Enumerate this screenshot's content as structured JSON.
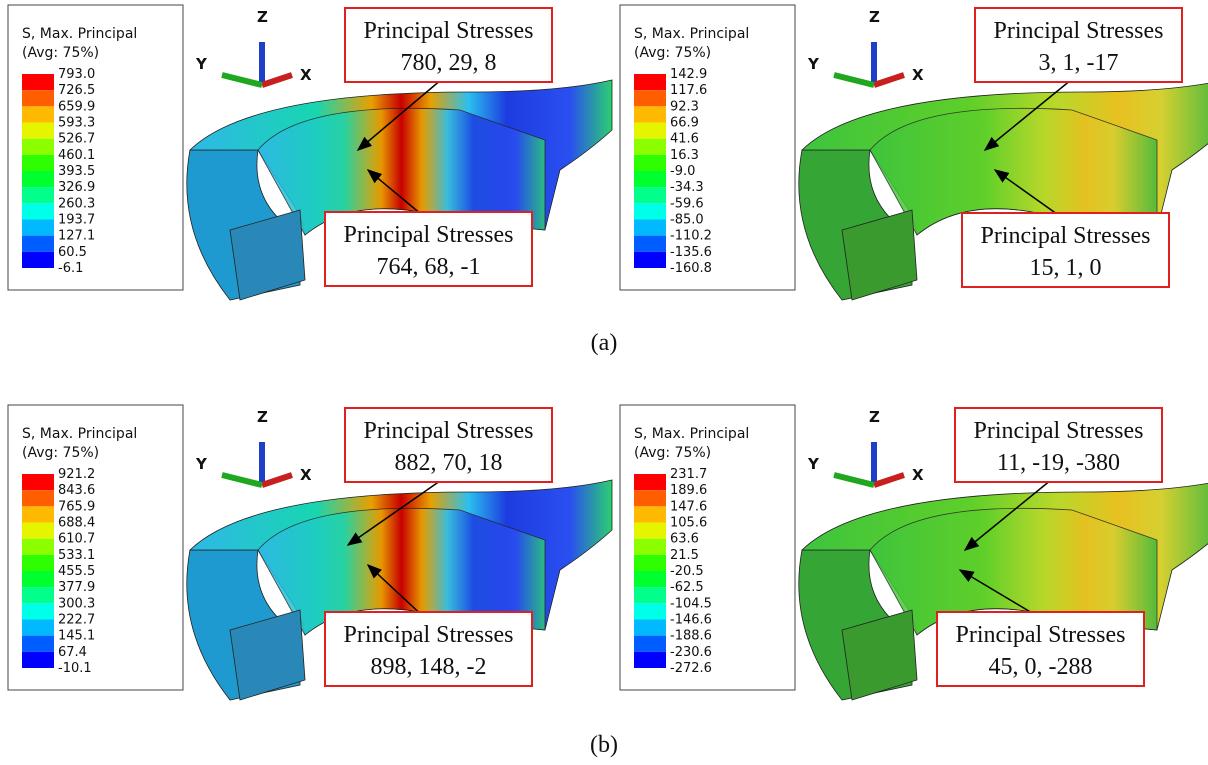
{
  "panels": [
    {
      "legend": {
        "title": "S, Max. Principal",
        "subtitle": "(Avg: 75%)",
        "values": [
          "793.0",
          "726.5",
          "659.9",
          "593.3",
          "526.7",
          "460.1",
          "393.5",
          "326.9",
          "260.3",
          "193.7",
          "127.1",
          "60.5",
          "-6.1"
        ]
      },
      "axes": {
        "z": "Z",
        "y": "Y",
        "x": "X"
      },
      "callouts": [
        {
          "title": "Principal Stresses",
          "values": "780, 29, 8"
        },
        {
          "title": "Principal Stresses",
          "values": "764, 68, -1"
        }
      ]
    },
    {
      "legend": {
        "title": "S, Max. Principal",
        "subtitle": "(Avg: 75%)",
        "values": [
          "142.9",
          "117.6",
          "92.3",
          "66.9",
          "41.6",
          "16.3",
          "-9.0",
          "-34.3",
          "-59.6",
          "-85.0",
          "-110.2",
          "-135.6",
          "-160.8"
        ]
      },
      "axes": {
        "z": "Z",
        "y": "Y",
        "x": "X"
      },
      "callouts": [
        {
          "title": "Principal Stresses",
          "values": "3, 1, -17"
        },
        {
          "title": "Principal Stresses",
          "values": "15, 1, 0"
        }
      ]
    },
    {
      "legend": {
        "title": "S, Max. Principal",
        "subtitle": "(Avg: 75%)",
        "values": [
          "921.2",
          "843.6",
          "765.9",
          "688.4",
          "610.7",
          "533.1",
          "455.5",
          "377.9",
          "300.3",
          "222.7",
          "145.1",
          "67.4",
          "-10.1"
        ]
      },
      "axes": {
        "z": "Z",
        "y": "Y",
        "x": "X"
      },
      "callouts": [
        {
          "title": "Principal Stresses",
          "values": "882, 70, 18"
        },
        {
          "title": "Principal Stresses",
          "values": "898, 148, -2"
        }
      ]
    },
    {
      "legend": {
        "title": "S, Max. Principal",
        "subtitle": "(Avg: 75%)",
        "values": [
          "231.7",
          "189.6",
          "147.6",
          "105.6",
          "63.6",
          "21.5",
          "-20.5",
          "-62.5",
          "-104.5",
          "-146.6",
          "-188.6",
          "-230.6",
          "-272.6"
        ]
      },
      "axes": {
        "z": "Z",
        "y": "Y",
        "x": "X"
      },
      "callouts": [
        {
          "title": "Principal Stresses",
          "values": "11, -19, -380"
        },
        {
          "title": "Principal Stresses",
          "values": "45, 0, -288"
        }
      ]
    }
  ],
  "captions": [
    "(a)",
    "(b)"
  ]
}
